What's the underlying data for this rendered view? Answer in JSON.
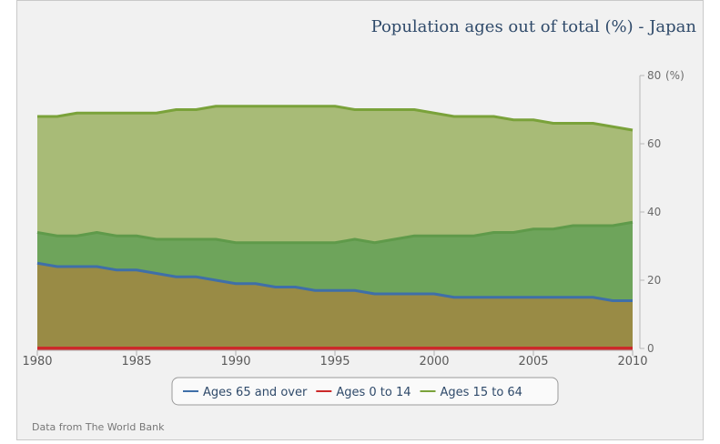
{
  "chart_data": {
    "type": "area",
    "title": "Population ages out of total (%) - Japan",
    "ylabel": "(%)",
    "xlabel": "",
    "xlim": [
      1980,
      2010
    ],
    "ylim": [
      0,
      80
    ],
    "xticks": [
      1980,
      1985,
      1990,
      1995,
      2000,
      2005,
      2010
    ],
    "yticks": [
      0,
      20,
      40,
      60,
      80
    ],
    "stacked": false,
    "legend_position": "bottom",
    "grid": false,
    "x": [
      1980,
      1981,
      1982,
      1983,
      1984,
      1985,
      1986,
      1987,
      1988,
      1989,
      1990,
      1991,
      1992,
      1993,
      1994,
      1995,
      1996,
      1997,
      1998,
      1999,
      2000,
      2001,
      2002,
      2003,
      2004,
      2005,
      2006,
      2007,
      2008,
      2009,
      2010
    ],
    "series": [
      {
        "name": "Ages 65 and over",
        "color": "#3f6fa8",
        "fill": "#9b8a45",
        "values": [
          25,
          24,
          24,
          24,
          23,
          23,
          22,
          21,
          21,
          20,
          19,
          19,
          18,
          18,
          17,
          17,
          17,
          16,
          16,
          16,
          16,
          15,
          15,
          15,
          15,
          15,
          15,
          15,
          15,
          14,
          14
        ]
      },
      {
        "name": "Ages 0 to 14",
        "color": "#cc2a2a",
        "fill": "#cc2a2a",
        "values": [
          0,
          0,
          0,
          0,
          0,
          0,
          0,
          0,
          0,
          0,
          0,
          0,
          0,
          0,
          0,
          0,
          0,
          0,
          0,
          0,
          0,
          0,
          0,
          0,
          0,
          0,
          0,
          0,
          0,
          0,
          0
        ]
      },
      {
        "name": "Ages 15 to 64",
        "color": "#7aa23a",
        "fill": "#a3b770",
        "values": [
          68,
          68,
          69,
          69,
          69,
          69,
          69,
          70,
          70,
          71,
          71,
          71,
          71,
          71,
          71,
          71,
          70,
          70,
          70,
          70,
          69,
          68,
          68,
          68,
          67,
          67,
          66,
          66,
          66,
          65,
          64
        ]
      },
      {
        "name": "",
        "color": "#5f9a4a",
        "fill": "#6aa25a",
        "values": [
          34,
          33,
          33,
          34,
          33,
          33,
          32,
          32,
          32,
          32,
          31,
          31,
          31,
          31,
          31,
          31,
          32,
          31,
          32,
          33,
          33,
          33,
          33,
          34,
          34,
          35,
          35,
          36,
          36,
          36,
          37
        ]
      }
    ]
  },
  "source_note": "Data from The World Bank"
}
